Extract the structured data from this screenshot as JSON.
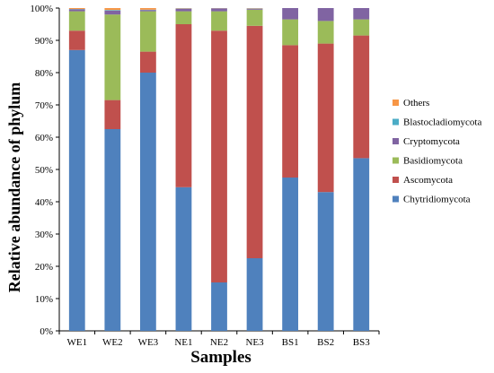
{
  "chart_data": {
    "type": "bar",
    "stacked": true,
    "categories": [
      "WE1",
      "WE2",
      "WE3",
      "NE1",
      "NE2",
      "NE3",
      "BS1",
      "BS2",
      "BS3"
    ],
    "series": [
      {
        "name": "Chytridiomycota",
        "color": "#4F81BD",
        "values": [
          87.0,
          62.5,
          80.0,
          44.5,
          15.0,
          22.5,
          47.5,
          43.0,
          53.5
        ]
      },
      {
        "name": "Ascomycota",
        "color": "#C0504D",
        "values": [
          6.0,
          9.0,
          6.5,
          50.5,
          78.0,
          72.0,
          41.0,
          46.0,
          38.0
        ]
      },
      {
        "name": "Basidiomycota",
        "color": "#9BBB59",
        "values": [
          6.0,
          26.5,
          12.5,
          4.0,
          6.0,
          5.0,
          8.0,
          7.0,
          5.0
        ]
      },
      {
        "name": "Cryptomycota",
        "color": "#8064A2",
        "values": [
          0.6,
          1.2,
          0.4,
          0.8,
          0.9,
          0.3,
          3.5,
          4.0,
          3.5
        ]
      },
      {
        "name": "Blastocladiomycota",
        "color": "#4BACC6",
        "values": [
          0.1,
          0.2,
          0.1,
          0.1,
          0.05,
          0.1,
          0.0,
          0.0,
          0.0
        ]
      },
      {
        "name": "Others",
        "color": "#F79646",
        "values": [
          0.3,
          0.6,
          0.5,
          0.1,
          0.05,
          0.1,
          0.0,
          0.0,
          0.0
        ]
      }
    ],
    "legend_order": [
      "Others",
      "Blastocladiomycota",
      "Cryptomycota",
      "Basidiomycota",
      "Ascomycota",
      "Chytridiomycota"
    ],
    "xlabel": "Samples",
    "ylabel": "Relative abundance of phylum",
    "ylim": [
      0,
      100
    ],
    "yticks": [
      "0%",
      "10%",
      "20%",
      "30%",
      "40%",
      "50%",
      "60%",
      "70%",
      "80%",
      "90%",
      "100%"
    ],
    "grid": false,
    "legend_position": "right"
  }
}
